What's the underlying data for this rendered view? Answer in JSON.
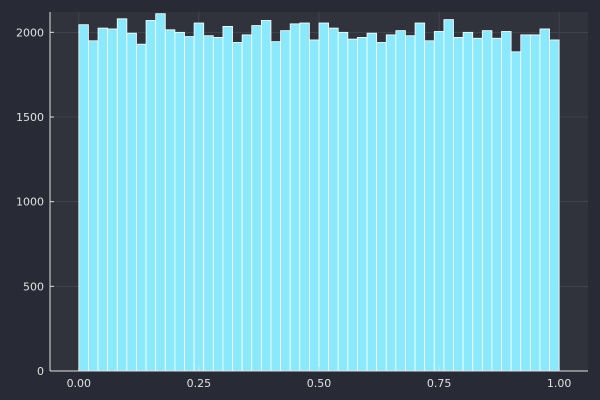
{
  "theme": {
    "background": "#282a36",
    "plot_background": "#30333b",
    "bar_color": "#8be9fd",
    "bar_edge": "#ffffff",
    "text_color": "#e0e0e0"
  },
  "chart_data": {
    "type": "bar",
    "title": "",
    "xlabel": "",
    "ylabel": "",
    "xlim": [
      -0.06,
      1.06
    ],
    "ylim": [
      0,
      2120
    ],
    "grid": true,
    "legend": false,
    "bin_width": 0.02,
    "bin_start": 0.0,
    "values": [
      2045,
      1950,
      2025,
      2020,
      2080,
      1995,
      1930,
      2070,
      2110,
      2015,
      2000,
      1975,
      2055,
      1980,
      1970,
      2035,
      1940,
      1985,
      2040,
      2070,
      1945,
      2010,
      2050,
      2055,
      1955,
      2055,
      2025,
      2000,
      1960,
      1970,
      1995,
      1940,
      1985,
      2010,
      1980,
      2055,
      1950,
      2005,
      2075,
      1970,
      2000,
      1965,
      2010,
      1965,
      2005,
      1885,
      1985,
      1985,
      2020,
      1955
    ],
    "x_ticks": [
      0,
      0.25,
      0.5,
      0.75,
      1.0
    ],
    "x_tick_labels": [
      "0.00",
      "0.25",
      "0.50",
      "0.75",
      "1.00"
    ],
    "y_ticks": [
      0,
      500,
      1000,
      1500,
      2000
    ],
    "y_tick_labels": [
      "0",
      "500",
      "1000",
      "1500",
      "2000"
    ]
  }
}
